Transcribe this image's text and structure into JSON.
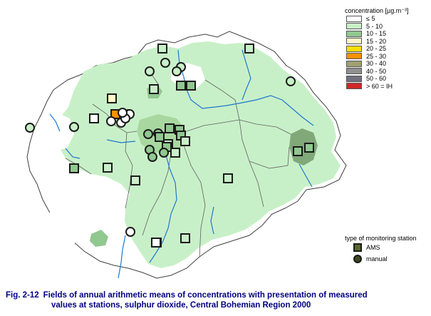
{
  "legend": {
    "title": "concentration [µg.m⁻³]",
    "items": [
      {
        "label": "≤ 5",
        "color": "#ffffff"
      },
      {
        "label": "5 - 10",
        "color": "#c8f0c8"
      },
      {
        "label": "10 - 15",
        "color": "#90c890"
      },
      {
        "label": "15 - 20",
        "color": "#fff8c8"
      },
      {
        "label": "20 - 25",
        "color": "#ffe000"
      },
      {
        "label": "25 - 30",
        "color": "#ff9000"
      },
      {
        "label": "30 - 40",
        "color": "#a0a070"
      },
      {
        "label": "40 - 50",
        "color": "#909090"
      },
      {
        "label": "50 - 60",
        "color": "#707080"
      },
      {
        "label": "> 60 = IH",
        "color": "#d02828"
      }
    ]
  },
  "station_legend": {
    "title": "type of monitoring station",
    "ams_label": "AMS",
    "manual_label": "manual"
  },
  "caption": {
    "label": "Fig. 2-12",
    "line1": "Fields of annual arithmetic means of concentrations with presentation of measured",
    "line2": "values at stations, sulphur dioxide, Central Bohemian Region 2000"
  },
  "colors": {
    "region_fill": "#c8f0c8",
    "low_fill": "#ffffff",
    "mid_fill": "#90c890",
    "hot_fill": "#80a878",
    "river": "#1e78d0",
    "border": "#404040",
    "station_outline": "#1a1a1a"
  },
  "stations": [
    {
      "type": "ams",
      "cat": "5 - 10"
    },
    {
      "type": "ams",
      "cat": "5 - 10"
    },
    {
      "type": "manual",
      "cat": "5 - 10"
    },
    {
      "type": "manual",
      "cat": "5 - 10"
    },
    {
      "type": "manual",
      "cat": "5 - 10"
    },
    {
      "type": "manual",
      "cat": "5 - 10"
    },
    {
      "type": "ams",
      "cat": "10 - 15"
    },
    {
      "type": "ams",
      "cat": "10 - 15"
    },
    {
      "type": "ams",
      "cat": "5 - 10"
    },
    {
      "type": "ams",
      "cat": "15 - 20"
    },
    {
      "type": "ams",
      "cat": "25 - 30"
    },
    {
      "type": "manual",
      "cat": "≤ 5"
    },
    {
      "type": "manual",
      "cat": "≤ 5"
    },
    {
      "type": "manual",
      "cat": "5 - 10"
    },
    {
      "type": "manual",
      "cat": "5 - 10"
    },
    {
      "type": "manual",
      "cat": "5 - 10"
    },
    {
      "type": "ams",
      "cat": "≤ 5"
    },
    {
      "type": "manual",
      "cat": "≤ 5"
    },
    {
      "type": "manual",
      "cat": "≤ 5"
    },
    {
      "type": "manual",
      "cat": "≤ 5"
    },
    {
      "type": "manual",
      "cat": "10 - 15"
    },
    {
      "type": "manual",
      "cat": "10 - 15"
    },
    {
      "type": "manual",
      "cat": "10 - 15"
    },
    {
      "type": "ams",
      "cat": "10 - 15"
    },
    {
      "type": "ams",
      "cat": "10 - 15"
    },
    {
      "type": "ams",
      "cat": "10 - 15"
    },
    {
      "type": "ams",
      "cat": "10 - 15"
    },
    {
      "type": "ams",
      "cat": "5 - 10"
    },
    {
      "type": "ams",
      "cat": "10 - 15"
    },
    {
      "type": "ams",
      "cat": "5 - 10"
    },
    {
      "type": "ams",
      "cat": "5 - 10"
    },
    {
      "type": "manual",
      "cat": "10 - 15"
    },
    {
      "type": "manual",
      "cat": "10 - 15"
    },
    {
      "type": "ams",
      "cat": "5 - 10"
    },
    {
      "type": "ams",
      "cat": "10 - 15"
    },
    {
      "type": "manual",
      "cat": "5 - 10"
    },
    {
      "type": "ams",
      "cat": "5 - 10"
    },
    {
      "type": "ams",
      "cat": "5 - 10"
    },
    {
      "type": "ams",
      "cat": "10 - 15"
    },
    {
      "type": "ams",
      "cat": "10 - 15"
    },
    {
      "type": "manual",
      "cat": "5 - 10"
    },
    {
      "type": "ams",
      "cat": "5 - 10"
    },
    {
      "type": "ams",
      "cat": "5 - 10"
    },
    {
      "type": "manual",
      "cat": "≤ 5"
    },
    {
      "type": "ams",
      "cat": "≤ 5"
    }
  ]
}
